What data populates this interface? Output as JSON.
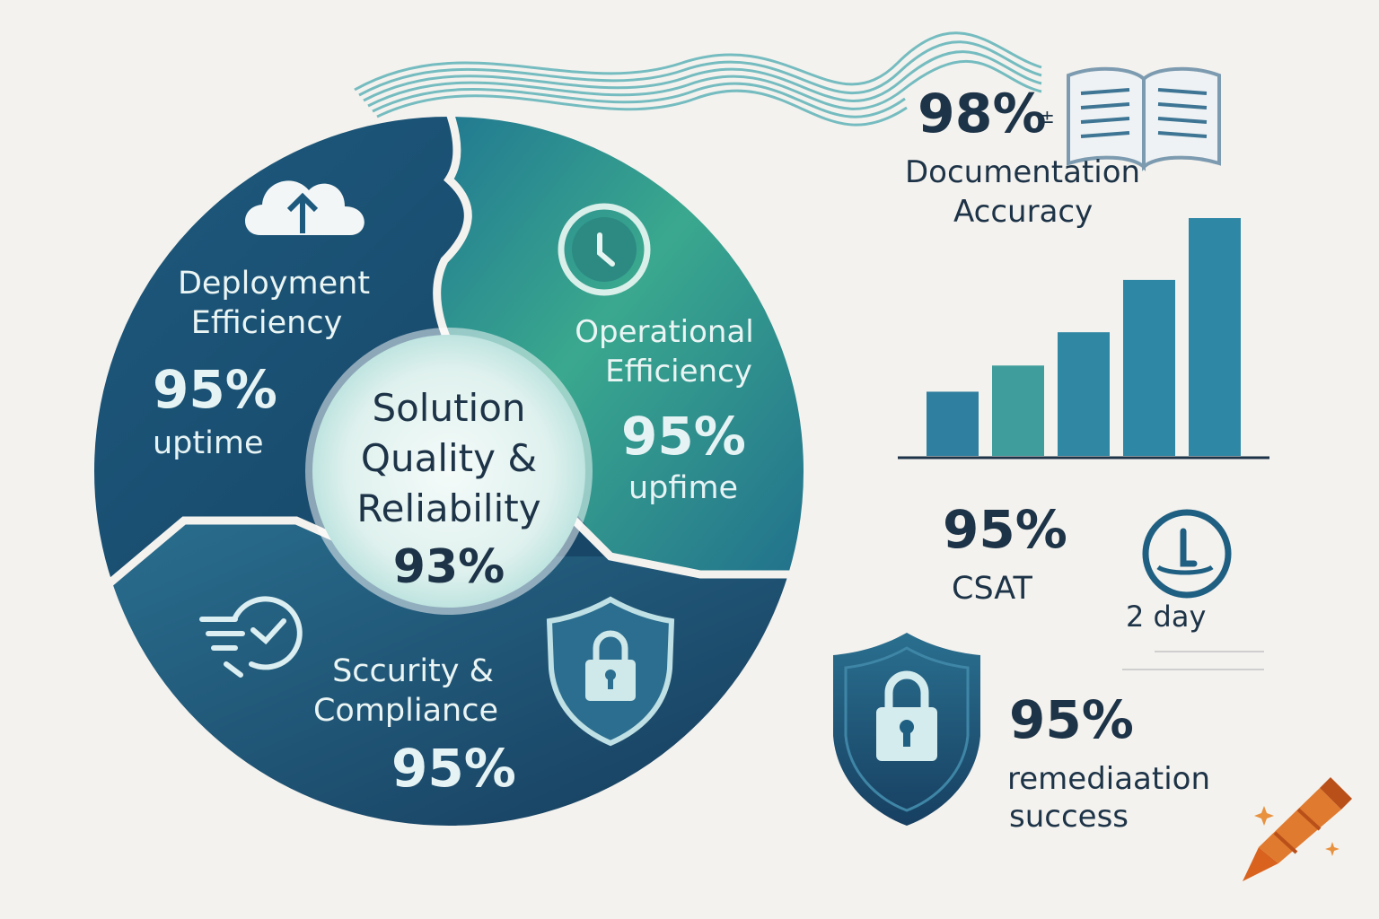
{
  "center": {
    "line1": "Solution",
    "line2": "Quality &",
    "line3": "Reliability",
    "value": "93%"
  },
  "segments": {
    "deployment": {
      "title1": "Deployment",
      "title2": "Efficiency",
      "value": "95%",
      "sub": "uptime",
      "icon": "cloud-upload-icon"
    },
    "operational": {
      "title1": "Operational",
      "title2": "Efficiency",
      "value": "95%",
      "sub": "upfime",
      "icon": "clock-icon"
    },
    "security": {
      "title1": "Sccurity &",
      "title2": "Compliance",
      "value": "95%",
      "icon": "check-circle-icon",
      "icon2": "shield-lock-icon"
    }
  },
  "documentation": {
    "value": "98%",
    "mark": "±",
    "label1": "Documentation",
    "label2": "Accuracy",
    "icon": "book-icon"
  },
  "bar_chart": {
    "values": [
      0.27,
      0.38,
      0.52,
      0.74,
      1.0
    ],
    "colors": [
      "#2f7fa0",
      "#3f9e9c",
      "#2f87a3",
      "#2f87a6",
      "#2f87a6"
    ]
  },
  "csat": {
    "value": "95%",
    "label": "CSAT"
  },
  "timing": {
    "label": "2 day",
    "icon": "timer-icon"
  },
  "remediation": {
    "value": "95%",
    "label1": "remediaation",
    "label2": "success",
    "icon": "shield-lock-icon"
  },
  "colors": {
    "navy": "#163e5e",
    "teal": "#2e8a8f",
    "green": "#3aa88e",
    "background": "#f4f2ee",
    "text_dark": "#1d3347"
  },
  "logo": {
    "icon": "crayon-icon"
  }
}
